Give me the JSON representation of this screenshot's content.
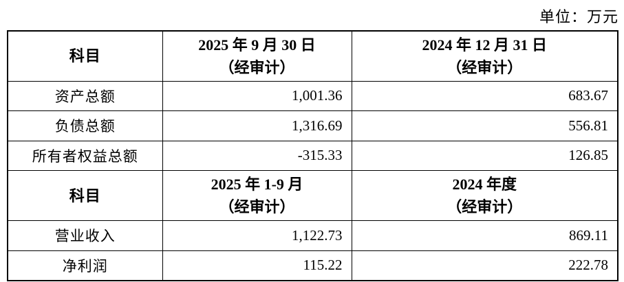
{
  "unit_label": "单位：万元",
  "balance_table": {
    "header": {
      "subject": "科目",
      "col1_line1": "2025 年 9 月 30 日",
      "col1_line2": "（经审计）",
      "col2_line1": "2024 年 12 月 31 日",
      "col2_line2": "（经审计）"
    },
    "rows": [
      {
        "label": "资产总额",
        "v2025": "1,001.36",
        "v2024": "683.67"
      },
      {
        "label": "负债总额",
        "v2025": "1,316.69",
        "v2024": "556.81"
      },
      {
        "label": "所有者权益总额",
        "v2025": "-315.33",
        "v2024": "126.85"
      }
    ]
  },
  "income_table": {
    "header": {
      "subject": "科目",
      "col1_line1": "2025 年 1-9 月",
      "col1_line2": "（经审计）",
      "col2_line1": "2024 年度",
      "col2_line2": "（经审计）"
    },
    "rows": [
      {
        "label": "营业收入",
        "v2025": "1,122.73",
        "v2024": "869.11"
      },
      {
        "label": "净利润",
        "v2025": "115.22",
        "v2024": "222.78"
      }
    ]
  }
}
